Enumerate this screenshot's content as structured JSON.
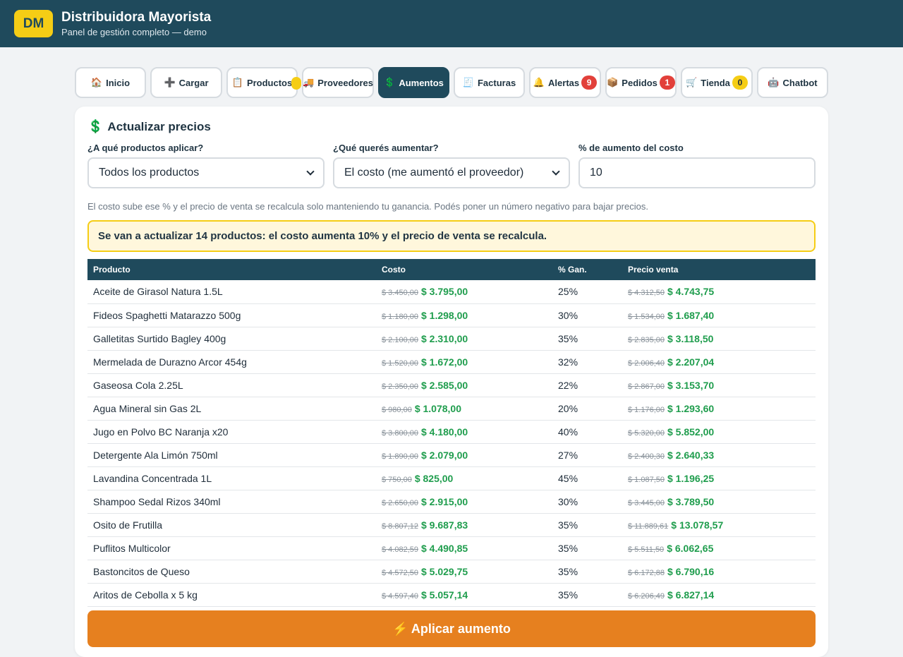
{
  "header": {
    "logo": "DM",
    "title": "Distribuidora Mayorista",
    "subtitle": "Panel de gestión completo — demo"
  },
  "tabs": [
    {
      "icon": "🏠",
      "label": "Inicio"
    },
    {
      "icon": "➕",
      "label": "Cargar"
    },
    {
      "icon": "📋",
      "label": "Productos"
    },
    {
      "icon": "🚚",
      "label": "Proveedores"
    },
    {
      "icon": "💲",
      "label": "Aumentos"
    },
    {
      "icon": "🧾",
      "label": "Facturas"
    },
    {
      "icon": "🔔",
      "label": "Alertas",
      "badge": "9"
    },
    {
      "icon": "📦",
      "label": "Pedidos",
      "badge": "1"
    },
    {
      "icon": "🛒",
      "label": "Tienda",
      "badge": "0"
    },
    {
      "icon": "🤖",
      "label": "Chatbot"
    }
  ],
  "card": {
    "icon": "💲",
    "title": "Actualizar precios",
    "fields": {
      "apply_to_label": "¿A qué productos aplicar?",
      "apply_to_value": "Todos los productos",
      "increase_what_label": "¿Qué querés aumentar?",
      "increase_what_value": "El costo (me aumentó el proveedor)",
      "percent_label": "% de aumento del costo",
      "percent_value": "10"
    },
    "hint": "El costo sube ese % y el precio de venta se recalcula solo manteniendo tu ganancia. Podés poner un número negativo para bajar precios.",
    "notice": "Se van a actualizar 14 productos: el costo aumenta 10% y el precio de venta se recalcula.",
    "columns": [
      "Producto",
      "Costo",
      "% Gan.",
      "Precio venta"
    ],
    "rows": [
      {
        "name": "Aceite de Girasol Natura 1.5L",
        "cost_old": "$ 3.450,00",
        "cost_new": "$ 3.795,00",
        "gain": "25%",
        "price_old": "$ 4.312,50",
        "price_new": "$ 4.743,75"
      },
      {
        "name": "Fideos Spaghetti Matarazzo 500g",
        "cost_old": "$ 1.180,00",
        "cost_new": "$ 1.298,00",
        "gain": "30%",
        "price_old": "$ 1.534,00",
        "price_new": "$ 1.687,40"
      },
      {
        "name": "Galletitas Surtido Bagley 400g",
        "cost_old": "$ 2.100,00",
        "cost_new": "$ 2.310,00",
        "gain": "35%",
        "price_old": "$ 2.835,00",
        "price_new": "$ 3.118,50"
      },
      {
        "name": "Mermelada de Durazno Arcor 454g",
        "cost_old": "$ 1.520,00",
        "cost_new": "$ 1.672,00",
        "gain": "32%",
        "price_old": "$ 2.006,40",
        "price_new": "$ 2.207,04"
      },
      {
        "name": "Gaseosa Cola 2.25L",
        "cost_old": "$ 2.350,00",
        "cost_new": "$ 2.585,00",
        "gain": "22%",
        "price_old": "$ 2.867,00",
        "price_new": "$ 3.153,70"
      },
      {
        "name": "Agua Mineral sin Gas 2L",
        "cost_old": "$ 980,00",
        "cost_new": "$ 1.078,00",
        "gain": "20%",
        "price_old": "$ 1.176,00",
        "price_new": "$ 1.293,60"
      },
      {
        "name": "Jugo en Polvo BC Naranja x20",
        "cost_old": "$ 3.800,00",
        "cost_new": "$ 4.180,00",
        "gain": "40%",
        "price_old": "$ 5.320,00",
        "price_new": "$ 5.852,00"
      },
      {
        "name": "Detergente Ala Limón 750ml",
        "cost_old": "$ 1.890,00",
        "cost_new": "$ 2.079,00",
        "gain": "27%",
        "price_old": "$ 2.400,30",
        "price_new": "$ 2.640,33"
      },
      {
        "name": "Lavandina Concentrada 1L",
        "cost_old": "$ 750,00",
        "cost_new": "$ 825,00",
        "gain": "45%",
        "price_old": "$ 1.087,50",
        "price_new": "$ 1.196,25"
      },
      {
        "name": "Shampoo Sedal Rizos 340ml",
        "cost_old": "$ 2.650,00",
        "cost_new": "$ 2.915,00",
        "gain": "30%",
        "price_old": "$ 3.445,00",
        "price_new": "$ 3.789,50"
      },
      {
        "name": "Osito de Frutilla",
        "cost_old": "$ 8.807,12",
        "cost_new": "$ 9.687,83",
        "gain": "35%",
        "price_old": "$ 11.889,61",
        "price_new": "$ 13.078,57"
      },
      {
        "name": "Puflitos Multicolor",
        "cost_old": "$ 4.082,59",
        "cost_new": "$ 4.490,85",
        "gain": "35%",
        "price_old": "$ 5.511,50",
        "price_new": "$ 6.062,65"
      },
      {
        "name": "Bastoncitos de Queso",
        "cost_old": "$ 4.572,50",
        "cost_new": "$ 5.029,75",
        "gain": "35%",
        "price_old": "$ 6.172,88",
        "price_new": "$ 6.790,16"
      },
      {
        "name": "Aritos de Cebolla x 5 kg",
        "cost_old": "$ 4.597,40",
        "cost_new": "$ 5.057,14",
        "gain": "35%",
        "price_old": "$ 6.206,49",
        "price_new": "$ 6.827,14"
      }
    ],
    "apply_button": "⚡ Aplicar aumento"
  },
  "colors": {
    "header_bg": "#1f4a5c",
    "logo_bg": "#f5cd15",
    "accent_green": "#1f9d4d",
    "apply_orange": "#e6801f",
    "notice_bg": "#fff7dc",
    "badge_red": "#e2403a"
  }
}
